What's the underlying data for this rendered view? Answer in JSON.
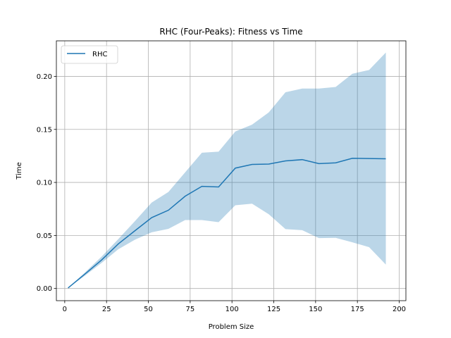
{
  "chart_data": {
    "type": "line",
    "title": "RHC (Four-Peaks): Fitness vs Time",
    "xlabel": "Problem Size",
    "ylabel": "Time",
    "xlim": [
      -5,
      204
    ],
    "ylim": [
      -0.0115,
      0.2335
    ],
    "xticks": [
      0,
      25,
      50,
      75,
      100,
      125,
      150,
      175,
      200
    ],
    "yticks": [
      0.0,
      0.05,
      0.1,
      0.15,
      0.2
    ],
    "ytick_labels": [
      "0.00",
      "0.05",
      "0.10",
      "0.15",
      "0.20"
    ],
    "grid": true,
    "legend": {
      "position": "top-left",
      "entries": [
        "RHC"
      ]
    },
    "colors": {
      "line": "#1f77b4",
      "band": "#1f77b4",
      "grid": "#b0b0b0"
    },
    "x": [
      2,
      12,
      22,
      32,
      42,
      52,
      62,
      72,
      82,
      92,
      102,
      112,
      122,
      132,
      142,
      152,
      162,
      172,
      182,
      192
    ],
    "series": [
      {
        "name": "RHC",
        "values": [
          0.0005,
          0.0135,
          0.0268,
          0.042,
          0.0545,
          0.0668,
          0.0738,
          0.087,
          0.0963,
          0.0957,
          0.1135,
          0.117,
          0.1173,
          0.1203,
          0.1215,
          0.1177,
          0.1185,
          0.1228,
          0.1225,
          0.1223
        ],
        "lower": [
          0.0005,
          0.012,
          0.024,
          0.037,
          0.046,
          0.053,
          0.0562,
          0.0645,
          0.0645,
          0.0625,
          0.0785,
          0.08,
          0.07,
          0.056,
          0.055,
          0.0475,
          0.0478,
          0.0435,
          0.039,
          0.0225
        ],
        "upper": [
          0.0005,
          0.015,
          0.03,
          0.0465,
          0.0635,
          0.081,
          0.091,
          0.1095,
          0.128,
          0.129,
          0.148,
          0.1545,
          0.166,
          0.185,
          0.1885,
          0.1885,
          0.19,
          0.2025,
          0.206,
          0.2225
        ]
      }
    ]
  }
}
